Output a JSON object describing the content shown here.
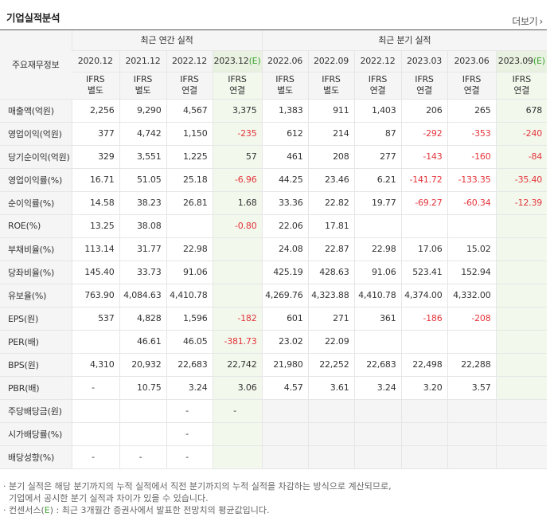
{
  "title": "기업실적분석",
  "more_label": "더보기",
  "corner_label": "주요재무정보",
  "groups": {
    "annual": "최근 연간 실적",
    "quarter": "최근 분기 실적"
  },
  "periods": [
    {
      "label": "2020.12",
      "est": false
    },
    {
      "label": "2021.12",
      "est": false
    },
    {
      "label": "2022.12",
      "est": false
    },
    {
      "label": "2023.12",
      "est": true
    },
    {
      "label": "2022.06",
      "est": false
    },
    {
      "label": "2022.09",
      "est": false
    },
    {
      "label": "2022.12",
      "est": false
    },
    {
      "label": "2023.03",
      "est": false
    },
    {
      "label": "2023.06",
      "est": false
    },
    {
      "label": "2023.09",
      "est": true
    }
  ],
  "est_mark": "(E)",
  "ifrs": [
    [
      "IFRS",
      "별도"
    ],
    [
      "IFRS",
      "별도"
    ],
    [
      "IFRS",
      "연결"
    ],
    [
      "IFRS",
      "연결"
    ],
    [
      "IFRS",
      "별도"
    ],
    [
      "IFRS",
      "별도"
    ],
    [
      "IFRS",
      "연결"
    ],
    [
      "IFRS",
      "연결"
    ],
    [
      "IFRS",
      "연결"
    ],
    [
      "IFRS",
      "연결"
    ]
  ],
  "rows": [
    {
      "label": "매출액(억원)",
      "values": [
        "2,256",
        "9,290",
        "4,567",
        "3,375",
        "1,383",
        "911",
        "1,403",
        "206",
        "265",
        "678"
      ]
    },
    {
      "label": "영업이익(억원)",
      "values": [
        "377",
        "4,742",
        "1,150",
        "-235",
        "612",
        "214",
        "87",
        "-292",
        "-353",
        "-240"
      ]
    },
    {
      "label": "당기순이익(억원)",
      "values": [
        "329",
        "3,551",
        "1,225",
        "57",
        "461",
        "208",
        "277",
        "-143",
        "-160",
        "-84"
      ]
    },
    {
      "label": "영업이익률(%)",
      "values": [
        "16.71",
        "51.05",
        "25.18",
        "-6.96",
        "44.25",
        "23.46",
        "6.21",
        "-141.72",
        "-133.35",
        "-35.40"
      ]
    },
    {
      "label": "순이익률(%)",
      "values": [
        "14.58",
        "38.23",
        "26.81",
        "1.68",
        "33.36",
        "22.82",
        "19.77",
        "-69.27",
        "-60.34",
        "-12.39"
      ]
    },
    {
      "label": "ROE(%)",
      "values": [
        "13.25",
        "38.08",
        "",
        "-0.80",
        "22.06",
        "17.81",
        "",
        "",
        "",
        ""
      ]
    },
    {
      "label": "부채비율(%)",
      "values": [
        "113.14",
        "31.77",
        "22.98",
        "",
        "24.08",
        "22.87",
        "22.98",
        "17.06",
        "15.02",
        ""
      ]
    },
    {
      "label": "당좌비율(%)",
      "values": [
        "145.40",
        "33.73",
        "91.06",
        "",
        "425.19",
        "428.63",
        "91.06",
        "523.41",
        "152.94",
        ""
      ]
    },
    {
      "label": "유보율(%)",
      "values": [
        "763.90",
        "4,084.63",
        "4,410.78",
        "",
        "4,269.76",
        "4,323.88",
        "4,410.78",
        "4,374.00",
        "4,332.00",
        ""
      ]
    },
    {
      "label": "EPS(원)",
      "values": [
        "537",
        "4,828",
        "1,596",
        "-182",
        "601",
        "271",
        "361",
        "-186",
        "-208",
        ""
      ]
    },
    {
      "label": "PER(배)",
      "values": [
        "",
        "46.61",
        "46.05",
        "-381.73",
        "23.02",
        "22.09",
        "",
        "",
        "",
        ""
      ]
    },
    {
      "label": "BPS(원)",
      "values": [
        "4,310",
        "20,932",
        "22,683",
        "22,742",
        "21,980",
        "22,252",
        "22,683",
        "22,498",
        "22,288",
        ""
      ]
    },
    {
      "label": "PBR(배)",
      "values": [
        "-",
        "10.75",
        "3.24",
        "3.06",
        "4.57",
        "3.61",
        "3.24",
        "3.20",
        "3.57",
        ""
      ]
    },
    {
      "label": "주당배당금(원)",
      "values": [
        "",
        "",
        "-",
        "-",
        "",
        "",
        "",
        "",
        "",
        ""
      ]
    },
    {
      "label": "시가배당률(%)",
      "values": [
        "",
        "",
        "-",
        "",
        "",
        "",
        "",
        "",
        "",
        ""
      ]
    },
    {
      "label": "배당성향(%)",
      "values": [
        "-",
        "-",
        "-",
        "",
        "",
        "",
        "",
        "",
        "",
        ""
      ]
    }
  ],
  "notes": {
    "line1": "· 분기 실적은 해당 분기까지의 누적 실적에서 직전 분기까지의 누적 실적을 차감하는 방식으로 계산되므로,",
    "line2": "  기업에서 공시한 분기 실적과 차이가 있을 수 있습니다.",
    "line3_pre": "· 컨센서스(",
    "line3_e": "E",
    "line3_post": ") : 최근 3개월간 증권사에서 발표한 전망치의 평균값입니다."
  },
  "colors": {
    "negative": "#e4343a",
    "ifrs": "#e8731e",
    "estimate": "#3ea433",
    "estimate_bg": "#f2f8ec"
  }
}
